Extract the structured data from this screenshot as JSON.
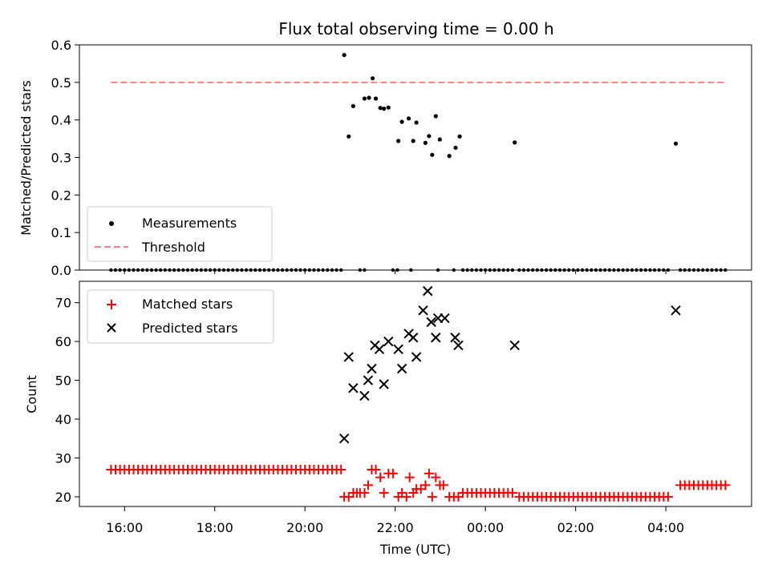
{
  "chart_data": [
    {
      "type": "scatter",
      "title": "Flux total observing time = 0.00 h",
      "ylabel": "Matched/Predicted stars",
      "xlabel": "",
      "x_unit": "hours since 16:00 UTC",
      "xlim": [
        -1.0,
        13.9
      ],
      "ylim": [
        0.0,
        0.6
      ],
      "y_ticks": [
        "0.0",
        "0.1",
        "0.2",
        "0.3",
        "0.4",
        "0.5",
        "0.6"
      ],
      "legend_position": "lower-left",
      "legend": [
        "Measurements",
        "Threshold"
      ],
      "threshold": {
        "name": "Threshold",
        "value": 0.5,
        "x_range": [
          -0.3,
          13.3
        ],
        "color": "#ff7f7f"
      },
      "series": [
        {
          "name": "Measurements",
          "color": "#000000",
          "points": [
            [
              4.87,
              0.573
            ],
            [
              4.97,
              0.356
            ],
            [
              5.07,
              0.437
            ],
            [
              5.32,
              0.457
            ],
            [
              5.42,
              0.459
            ],
            [
              5.5,
              0.511
            ],
            [
              5.57,
              0.457
            ],
            [
              5.67,
              0.432
            ],
            [
              5.75,
              0.43
            ],
            [
              5.85,
              0.433
            ],
            [
              6.07,
              0.344
            ],
            [
              6.15,
              0.395
            ],
            [
              6.3,
              0.404
            ],
            [
              6.4,
              0.344
            ],
            [
              6.47,
              0.393
            ],
            [
              6.67,
              0.339
            ],
            [
              6.75,
              0.357
            ],
            [
              6.82,
              0.307
            ],
            [
              6.9,
              0.41
            ],
            [
              6.99,
              0.348
            ],
            [
              7.2,
              0.304
            ],
            [
              7.34,
              0.326
            ],
            [
              7.43,
              0.356
            ],
            [
              8.65,
              0.34
            ],
            [
              12.22,
              0.337
            ]
          ],
          "zero_ranges": [
            [
              -0.3,
              4.8
            ],
            [
              5.22,
              5.35
            ],
            [
              5.95,
              6.1
            ],
            [
              6.35,
              6.35
            ],
            [
              6.95,
              7.0
            ],
            [
              7.3,
              7.3
            ],
            [
              7.5,
              8.6
            ],
            [
              8.75,
              12.1
            ],
            [
              12.32,
              13.35
            ]
          ]
        }
      ]
    },
    {
      "type": "scatter",
      "title": "",
      "ylabel": "Count",
      "xlabel": "Time (UTC)",
      "x_unit": "hours since 16:00 UTC",
      "xlim": [
        -1.0,
        13.9
      ],
      "ylim": [
        17.5,
        75.5
      ],
      "y_ticks": [
        "20",
        "30",
        "40",
        "50",
        "60",
        "70"
      ],
      "x_ticks": [
        "16:00",
        "18:00",
        "20:00",
        "22:00",
        "00:00",
        "02:00",
        "04:00"
      ],
      "legend_position": "upper-left",
      "legend": [
        "Matched stars",
        "Predicted stars"
      ],
      "series": [
        {
          "name": "Matched stars",
          "color": "#ff0000",
          "marker": "plus",
          "runs": [
            {
              "x_range": [
                -0.3,
                4.8
              ],
              "value": 27
            },
            {
              "x_range": [
                7.5,
                8.6
              ],
              "value": 21
            },
            {
              "x_range": [
                8.75,
                12.1
              ],
              "value": 20
            },
            {
              "x_range": [
                12.32,
                13.35
              ],
              "value": 23
            }
          ],
          "points": [
            [
              4.87,
              20
            ],
            [
              4.97,
              20
            ],
            [
              5.07,
              21
            ],
            [
              5.15,
              21
            ],
            [
              5.22,
              21
            ],
            [
              5.32,
              21
            ],
            [
              5.4,
              23
            ],
            [
              5.48,
              27
            ],
            [
              5.57,
              27
            ],
            [
              5.67,
              25
            ],
            [
              5.75,
              21
            ],
            [
              5.85,
              26
            ],
            [
              5.95,
              26
            ],
            [
              6.07,
              20
            ],
            [
              6.15,
              21
            ],
            [
              6.25,
              20
            ],
            [
              6.32,
              25
            ],
            [
              6.4,
              21
            ],
            [
              6.47,
              22
            ],
            [
              6.57,
              22
            ],
            [
              6.67,
              23
            ],
            [
              6.75,
              26
            ],
            [
              6.82,
              20
            ],
            [
              6.9,
              25
            ],
            [
              6.99,
              23
            ],
            [
              7.07,
              23
            ],
            [
              7.2,
              20
            ],
            [
              7.3,
              20
            ],
            [
              7.4,
              20
            ]
          ]
        },
        {
          "name": "Predicted stars",
          "color": "#000000",
          "marker": "x",
          "points": [
            [
              4.87,
              35
            ],
            [
              4.97,
              56
            ],
            [
              5.07,
              48
            ],
            [
              5.32,
              46
            ],
            [
              5.4,
              50
            ],
            [
              5.48,
              53
            ],
            [
              5.55,
              59
            ],
            [
              5.65,
              58
            ],
            [
              5.75,
              49
            ],
            [
              5.85,
              60
            ],
            [
              6.07,
              58
            ],
            [
              6.15,
              53
            ],
            [
              6.3,
              62
            ],
            [
              6.4,
              61
            ],
            [
              6.47,
              56
            ],
            [
              6.62,
              68
            ],
            [
              6.72,
              73
            ],
            [
              6.8,
              65
            ],
            [
              6.9,
              61
            ],
            [
              6.95,
              66
            ],
            [
              7.1,
              66
            ],
            [
              7.33,
              61
            ],
            [
              7.4,
              59
            ],
            [
              8.65,
              59
            ],
            [
              12.22,
              68
            ]
          ]
        }
      ]
    }
  ],
  "colors": {
    "axes": "#000000",
    "legend_border": "#cccccc"
  }
}
